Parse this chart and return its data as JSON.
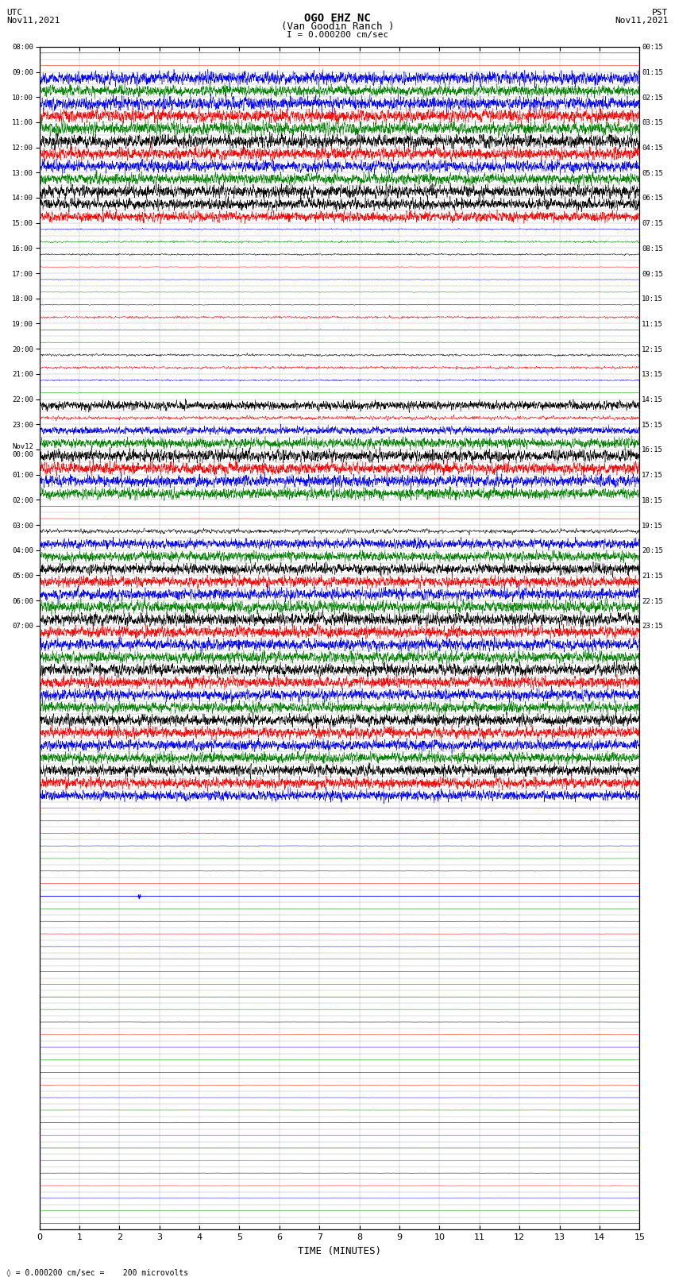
{
  "title_line1": "OGO EHZ NC",
  "title_line2": "(Van Goodin Ranch )",
  "scale_label": "I = 0.000200 cm/sec",
  "footer_label": "◊ = 0.000200 cm/sec =    200 microvolts",
  "utc_label": "UTC",
  "utc_date": "Nov11,2021",
  "pst_label": "PST",
  "pst_date": "Nov11,2021",
  "xlabel": "TIME (MINUTES)",
  "xlim": [
    0,
    15
  ],
  "xticks": [
    0,
    1,
    2,
    3,
    4,
    5,
    6,
    7,
    8,
    9,
    10,
    11,
    12,
    13,
    14,
    15
  ],
  "left_times": [
    "08:00",
    "",
    "09:00",
    "",
    "10:00",
    "",
    "11:00",
    "",
    "12:00",
    "",
    "13:00",
    "",
    "14:00",
    "",
    "15:00",
    "",
    "16:00",
    "",
    "17:00",
    "",
    "18:00",
    "",
    "19:00",
    "",
    "20:00",
    "",
    "21:00",
    "",
    "22:00",
    "",
    "23:00",
    "",
    "Nov12\n00:00",
    "",
    "01:00",
    "",
    "02:00",
    "",
    "03:00",
    "",
    "04:00",
    "",
    "05:00",
    "",
    "06:00",
    "",
    "07:00",
    ""
  ],
  "right_times": [
    "00:15",
    "",
    "01:15",
    "",
    "02:15",
    "",
    "03:15",
    "",
    "04:15",
    "",
    "05:15",
    "",
    "06:15",
    "",
    "07:15",
    "",
    "08:15",
    "",
    "09:15",
    "",
    "10:15",
    "",
    "11:15",
    "",
    "12:15",
    "",
    "13:15",
    "",
    "14:15",
    "",
    "15:15",
    "",
    "16:15",
    "",
    "17:15",
    "",
    "18:15",
    "",
    "19:15",
    "",
    "20:15",
    "",
    "21:15",
    "",
    "22:15",
    "",
    "23:15",
    ""
  ],
  "bg_color": "#ffffff",
  "grid_color": "#aaaaaa",
  "seed": 12345
}
